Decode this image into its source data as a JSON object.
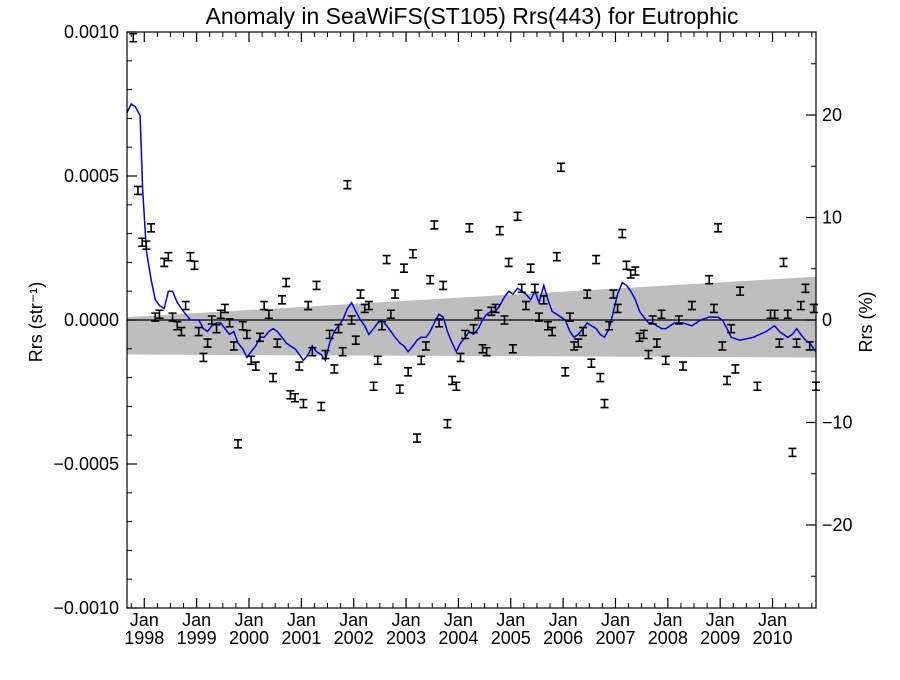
{
  "chart_data": {
    "type": "scatter",
    "title": "Anomaly in SeaWiFS(ST105) Rrs(443) for Eutrophic",
    "ylabel_left": "Rrs (str⁻¹)",
    "ylabel_right": "Rrs (%)",
    "xlabel": "",
    "xlim": [
      1997.67,
      2010.83
    ],
    "ylim_left": [
      -0.001,
      0.001
    ],
    "ylim_right": [
      -28.1,
      28.1
    ],
    "y_left_ticks": [
      "0.0010",
      "0.0005",
      "0.0000",
      "−0.0005",
      "−0.0010"
    ],
    "y_left_tick_values": [
      0.001,
      0.0005,
      0.0,
      -0.0005,
      -0.001
    ],
    "y_right_ticks": [
      "20",
      "10",
      "0",
      "−10",
      "−20"
    ],
    "y_right_tick_values": [
      20,
      10,
      0,
      -10,
      -20
    ],
    "x_ticks": [
      {
        "year": 1998,
        "top": "Jan",
        "bottom": "1998"
      },
      {
        "year": 1999,
        "top": "Jan",
        "bottom": "1999"
      },
      {
        "year": 2000,
        "top": "Jan",
        "bottom": "2000"
      },
      {
        "year": 2001,
        "top": "Jan",
        "bottom": "2001"
      },
      {
        "year": 2002,
        "top": "Jan",
        "bottom": "2002"
      },
      {
        "year": 2003,
        "top": "Jan",
        "bottom": "2003"
      },
      {
        "year": 2004,
        "top": "Jan",
        "bottom": "2004"
      },
      {
        "year": 2005,
        "top": "Jan",
        "bottom": "2005"
      },
      {
        "year": 2006,
        "top": "Jan",
        "bottom": "2006"
      },
      {
        "year": 2007,
        "top": "Jan",
        "bottom": "2007"
      },
      {
        "year": 2008,
        "top": "Jan",
        "bottom": "2008"
      },
      {
        "year": 2009,
        "top": "Jan",
        "bottom": "2009"
      },
      {
        "year": 2010,
        "top": "Jan",
        "bottom": "2010"
      }
    ],
    "grid": false,
    "colors": {
      "points": "#000000",
      "trend_line": "#0000dd",
      "confidence_band": "#bebebe",
      "zero_line": "#000000"
    },
    "confidence_band": {
      "x": [
        1997.67,
        2010.83
      ],
      "upper": [
        1e-05,
        0.00015
      ],
      "lower": [
        -0.00012,
        -0.00013
      ]
    },
    "zero_line": 0,
    "points": [
      {
        "x": 1997.79,
        "y": 0.00098
      },
      {
        "x": 1997.88,
        "y": 0.00045
      },
      {
        "x": 1997.96,
        "y": 0.00027
      },
      {
        "x": 1998.04,
        "y": 0.00026
      },
      {
        "x": 1998.13,
        "y": 0.00032
      },
      {
        "x": 1998.21,
        "y": 1e-05
      },
      {
        "x": 1998.29,
        "y": 2e-05
      },
      {
        "x": 1998.38,
        "y": 0.0002
      },
      {
        "x": 1998.46,
        "y": 0.00022
      },
      {
        "x": 1998.54,
        "y": 1e-05
      },
      {
        "x": 1998.63,
        "y": -2e-05
      },
      {
        "x": 1998.71,
        "y": -4e-05
      },
      {
        "x": 1998.79,
        "y": 5e-05
      },
      {
        "x": 1998.88,
        "y": 0.00022
      },
      {
        "x": 1998.96,
        "y": 0.00019
      },
      {
        "x": 1999.04,
        "y": -4e-05
      },
      {
        "x": 1999.13,
        "y": -0.00013
      },
      {
        "x": 1999.21,
        "y": -8e-05
      },
      {
        "x": 1999.29,
        "y": 0.0
      },
      {
        "x": 1999.38,
        "y": -3e-05
      },
      {
        "x": 1999.46,
        "y": 2e-05
      },
      {
        "x": 1999.54,
        "y": 4e-05
      },
      {
        "x": 1999.63,
        "y": -1e-05
      },
      {
        "x": 1999.71,
        "y": -9e-05
      },
      {
        "x": 1999.79,
        "y": -0.00043
      },
      {
        "x": 1999.88,
        "y": -2e-05
      },
      {
        "x": 1999.96,
        "y": -5e-05
      },
      {
        "x": 2000.04,
        "y": -0.00014
      },
      {
        "x": 2000.13,
        "y": -0.00016
      },
      {
        "x": 2000.21,
        "y": -6e-05
      },
      {
        "x": 2000.29,
        "y": 5e-05
      },
      {
        "x": 2000.38,
        "y": 2e-05
      },
      {
        "x": 2000.46,
        "y": -0.0002
      },
      {
        "x": 2000.54,
        "y": -8e-05
      },
      {
        "x": 2000.63,
        "y": 7e-05
      },
      {
        "x": 2000.71,
        "y": 0.00013
      },
      {
        "x": 2000.79,
        "y": -0.00026
      },
      {
        "x": 2000.88,
        "y": -0.00027
      },
      {
        "x": 2000.96,
        "y": -0.00016
      },
      {
        "x": 2001.04,
        "y": -0.00029
      },
      {
        "x": 2001.13,
        "y": 5e-05
      },
      {
        "x": 2001.21,
        "y": -0.00011
      },
      {
        "x": 2001.29,
        "y": 0.00012
      },
      {
        "x": 2001.38,
        "y": -0.0003
      },
      {
        "x": 2001.46,
        "y": -0.00012
      },
      {
        "x": 2001.54,
        "y": -5e-05
      },
      {
        "x": 2001.63,
        "y": -0.00017
      },
      {
        "x": 2001.71,
        "y": -3e-05
      },
      {
        "x": 2001.79,
        "y": -0.00011
      },
      {
        "x": 2001.88,
        "y": 0.00047
      },
      {
        "x": 2001.96,
        "y": 0.0
      },
      {
        "x": 2002.04,
        "y": -7e-05
      },
      {
        "x": 2002.13,
        "y": 9e-05
      },
      {
        "x": 2002.21,
        "y": 4e-05
      },
      {
        "x": 2002.29,
        "y": 5e-05
      },
      {
        "x": 2002.38,
        "y": -0.00023
      },
      {
        "x": 2002.46,
        "y": -0.00014
      },
      {
        "x": 2002.54,
        "y": -2e-05
      },
      {
        "x": 2002.63,
        "y": 0.00021
      },
      {
        "x": 2002.71,
        "y": 2e-05
      },
      {
        "x": 2002.79,
        "y": 9e-05
      },
      {
        "x": 2002.88,
        "y": -0.00024
      },
      {
        "x": 2002.96,
        "y": 0.00018
      },
      {
        "x": 2003.04,
        "y": -0.00018
      },
      {
        "x": 2003.13,
        "y": 0.00023
      },
      {
        "x": 2003.21,
        "y": -0.00041
      },
      {
        "x": 2003.29,
        "y": -0.00014
      },
      {
        "x": 2003.38,
        "y": -9e-05
      },
      {
        "x": 2003.46,
        "y": 0.00014
      },
      {
        "x": 2003.54,
        "y": 0.00033
      },
      {
        "x": 2003.63,
        "y": -1e-05
      },
      {
        "x": 2003.71,
        "y": 0.00012
      },
      {
        "x": 2003.79,
        "y": -0.00036
      },
      {
        "x": 2003.88,
        "y": -0.00021
      },
      {
        "x": 2003.96,
        "y": -0.00023
      },
      {
        "x": 2004.04,
        "y": -0.00013
      },
      {
        "x": 2004.13,
        "y": -5e-05
      },
      {
        "x": 2004.21,
        "y": 0.00032
      },
      {
        "x": 2004.29,
        "y": -3e-05
      },
      {
        "x": 2004.38,
        "y": 2e-05
      },
      {
        "x": 2004.46,
        "y": -0.0001
      },
      {
        "x": 2004.54,
        "y": -0.00011
      },
      {
        "x": 2004.63,
        "y": 3e-05
      },
      {
        "x": 2004.71,
        "y": 4e-05
      },
      {
        "x": 2004.79,
        "y": 0.00031
      },
      {
        "x": 2004.88,
        "y": 0.0
      },
      {
        "x": 2004.96,
        "y": 0.0002
      },
      {
        "x": 2005.04,
        "y": -0.0001
      },
      {
        "x": 2005.13,
        "y": 0.00036
      },
      {
        "x": 2005.21,
        "y": 0.00011
      },
      {
        "x": 2005.29,
        "y": 5e-05
      },
      {
        "x": 2005.38,
        "y": 0.00018
      },
      {
        "x": 2005.46,
        "y": 0.00011
      },
      {
        "x": 2005.54,
        "y": 1e-05
      },
      {
        "x": 2005.63,
        "y": 7e-05
      },
      {
        "x": 2005.71,
        "y": -2e-05
      },
      {
        "x": 2005.79,
        "y": -4e-05
      },
      {
        "x": 2005.88,
        "y": 0.00022
      },
      {
        "x": 2005.96,
        "y": 0.00053
      },
      {
        "x": 2006.04,
        "y": -0.00018
      },
      {
        "x": 2006.13,
        "y": 1e-05
      },
      {
        "x": 2006.21,
        "y": -9e-05
      },
      {
        "x": 2006.29,
        "y": -8e-05
      },
      {
        "x": 2006.38,
        "y": -4e-05
      },
      {
        "x": 2006.46,
        "y": 9e-05
      },
      {
        "x": 2006.54,
        "y": -0.00015
      },
      {
        "x": 2006.63,
        "y": 0.00021
      },
      {
        "x": 2006.71,
        "y": -0.0002
      },
      {
        "x": 2006.79,
        "y": -0.00029
      },
      {
        "x": 2006.88,
        "y": -2e-05
      },
      {
        "x": 2006.96,
        "y": 9e-05
      },
      {
        "x": 2007.04,
        "y": 4e-05
      },
      {
        "x": 2007.13,
        "y": 0.0003
      },
      {
        "x": 2007.21,
        "y": 0.00019
      },
      {
        "x": 2007.29,
        "y": 0.00016
      },
      {
        "x": 2007.38,
        "y": 0.00017
      },
      {
        "x": 2007.46,
        "y": -6e-05
      },
      {
        "x": 2007.54,
        "y": -5e-05
      },
      {
        "x": 2007.63,
        "y": -0.00012
      },
      {
        "x": 2007.71,
        "y": 0.0
      },
      {
        "x": 2007.79,
        "y": -8e-05
      },
      {
        "x": 2007.88,
        "y": 2e-05
      },
      {
        "x": 2007.96,
        "y": -0.00014
      },
      {
        "x": 2008.21,
        "y": 0.0
      },
      {
        "x": 2008.29,
        "y": -0.00016
      },
      {
        "x": 2008.46,
        "y": 5e-05
      },
      {
        "x": 2008.79,
        "y": 0.00014
      },
      {
        "x": 2008.88,
        "y": 4e-05
      },
      {
        "x": 2008.96,
        "y": 0.00032
      },
      {
        "x": 2009.04,
        "y": -9e-05
      },
      {
        "x": 2009.13,
        "y": -0.00021
      },
      {
        "x": 2009.21,
        "y": -3e-05
      },
      {
        "x": 2009.29,
        "y": -0.00017
      },
      {
        "x": 2009.38,
        "y": 0.0001
      },
      {
        "x": 2009.71,
        "y": -0.00023
      },
      {
        "x": 2009.96,
        "y": 2e-05
      },
      {
        "x": 2010.04,
        "y": 2e-05
      },
      {
        "x": 2010.13,
        "y": -8e-05
      },
      {
        "x": 2010.21,
        "y": 0.0002
      },
      {
        "x": 2010.29,
        "y": 2e-05
      },
      {
        "x": 2010.38,
        "y": -0.00046
      },
      {
        "x": 2010.46,
        "y": -8e-05
      },
      {
        "x": 2010.54,
        "y": 5e-05
      },
      {
        "x": 2010.63,
        "y": 0.00011
      },
      {
        "x": 2010.71,
        "y": -9e-05
      },
      {
        "x": 2010.79,
        "y": 4e-05
      },
      {
        "x": 2010.83,
        "y": -0.00023
      }
    ],
    "trend_line": [
      {
        "x": 1997.67,
        "y": 0.00072
      },
      {
        "x": 1997.75,
        "y": 0.00075
      },
      {
        "x": 1997.83,
        "y": 0.00074
      },
      {
        "x": 1997.92,
        "y": 0.00071
      },
      {
        "x": 1997.97,
        "y": 0.00045
      },
      {
        "x": 1998.04,
        "y": 0.00024
      },
      {
        "x": 1998.13,
        "y": 0.00014
      },
      {
        "x": 1998.21,
        "y": 7e-05
      },
      {
        "x": 1998.29,
        "y": 5e-05
      },
      {
        "x": 1998.38,
        "y": 4e-05
      },
      {
        "x": 1998.46,
        "y": 0.0001
      },
      {
        "x": 1998.54,
        "y": 0.0001
      },
      {
        "x": 1998.63,
        "y": 6e-05
      },
      {
        "x": 1998.71,
        "y": 4e-05
      },
      {
        "x": 1998.79,
        "y": 2e-05
      },
      {
        "x": 1998.88,
        "y": 0.0
      },
      {
        "x": 1998.96,
        "y": 0.0
      },
      {
        "x": 1999.04,
        "y": 0.0
      },
      {
        "x": 1999.13,
        "y": -3e-05
      },
      {
        "x": 1999.21,
        "y": -4e-05
      },
      {
        "x": 1999.29,
        "y": -2e-05
      },
      {
        "x": 1999.38,
        "y": -1e-05
      },
      {
        "x": 1999.46,
        "y": -1e-05
      },
      {
        "x": 1999.54,
        "y": -3e-05
      },
      {
        "x": 1999.63,
        "y": -5e-05
      },
      {
        "x": 1999.71,
        "y": -4e-05
      },
      {
        "x": 1999.79,
        "y": -8e-05
      },
      {
        "x": 1999.88,
        "y": -0.0001
      },
      {
        "x": 1999.96,
        "y": -0.00013
      },
      {
        "x": 2000.04,
        "y": -0.00011
      },
      {
        "x": 2000.13,
        "y": -9e-05
      },
      {
        "x": 2000.21,
        "y": -6e-05
      },
      {
        "x": 2000.29,
        "y": -6e-05
      },
      {
        "x": 2000.38,
        "y": -4e-05
      },
      {
        "x": 2000.46,
        "y": -3e-05
      },
      {
        "x": 2000.54,
        "y": -4e-05
      },
      {
        "x": 2000.63,
        "y": -6e-05
      },
      {
        "x": 2000.71,
        "y": -8e-05
      },
      {
        "x": 2000.79,
        "y": -9e-05
      },
      {
        "x": 2000.88,
        "y": -0.0001
      },
      {
        "x": 2000.96,
        "y": -0.00012
      },
      {
        "x": 2001.04,
        "y": -0.00014
      },
      {
        "x": 2001.13,
        "y": -0.00012
      },
      {
        "x": 2001.21,
        "y": -9e-05
      },
      {
        "x": 2001.29,
        "y": -0.00011
      },
      {
        "x": 2001.38,
        "y": -0.00012
      },
      {
        "x": 2001.46,
        "y": -0.00014
      },
      {
        "x": 2001.54,
        "y": -8e-05
      },
      {
        "x": 2001.63,
        "y": -4e-05
      },
      {
        "x": 2001.71,
        "y": -2e-05
      },
      {
        "x": 2001.79,
        "y": 0.0
      },
      {
        "x": 2001.88,
        "y": 4e-05
      },
      {
        "x": 2001.96,
        "y": 6e-05
      },
      {
        "x": 2002.04,
        "y": 3e-05
      },
      {
        "x": 2002.13,
        "y": 0.0
      },
      {
        "x": 2002.21,
        "y": -2e-05
      },
      {
        "x": 2002.29,
        "y": -5e-05
      },
      {
        "x": 2002.38,
        "y": -3e-05
      },
      {
        "x": 2002.46,
        "y": -1e-05
      },
      {
        "x": 2002.54,
        "y": 0.0
      },
      {
        "x": 2002.63,
        "y": -2e-05
      },
      {
        "x": 2002.71,
        "y": -4e-05
      },
      {
        "x": 2002.79,
        "y": -6e-05
      },
      {
        "x": 2002.88,
        "y": -8e-05
      },
      {
        "x": 2002.96,
        "y": -9e-05
      },
      {
        "x": 2003.04,
        "y": -0.00011
      },
      {
        "x": 2003.13,
        "y": -9e-05
      },
      {
        "x": 2003.21,
        "y": -7e-05
      },
      {
        "x": 2003.29,
        "y": -6e-05
      },
      {
        "x": 2003.38,
        "y": -6e-05
      },
      {
        "x": 2003.46,
        "y": -4e-05
      },
      {
        "x": 2003.54,
        "y": -1e-05
      },
      {
        "x": 2003.63,
        "y": 2e-05
      },
      {
        "x": 2003.71,
        "y": 1e-05
      },
      {
        "x": 2003.79,
        "y": -4e-05
      },
      {
        "x": 2003.88,
        "y": -8e-05
      },
      {
        "x": 2003.96,
        "y": -0.00011
      },
      {
        "x": 2004.04,
        "y": -8e-05
      },
      {
        "x": 2004.13,
        "y": -6e-05
      },
      {
        "x": 2004.21,
        "y": -4e-05
      },
      {
        "x": 2004.29,
        "y": -5e-05
      },
      {
        "x": 2004.38,
        "y": -3e-05
      },
      {
        "x": 2004.46,
        "y": 0.0
      },
      {
        "x": 2004.54,
        "y": 2e-05
      },
      {
        "x": 2004.63,
        "y": 3e-05
      },
      {
        "x": 2004.71,
        "y": 3e-05
      },
      {
        "x": 2004.79,
        "y": 5e-05
      },
      {
        "x": 2004.88,
        "y": 8e-05
      },
      {
        "x": 2004.96,
        "y": 0.0001
      },
      {
        "x": 2005.04,
        "y": 9e-05
      },
      {
        "x": 2005.13,
        "y": 0.00011
      },
      {
        "x": 2005.21,
        "y": 0.0001
      },
      {
        "x": 2005.29,
        "y": 9e-05
      },
      {
        "x": 2005.38,
        "y": 7e-05
      },
      {
        "x": 2005.46,
        "y": 0.0001
      },
      {
        "x": 2005.54,
        "y": 6e-05
      },
      {
        "x": 2005.63,
        "y": 0.00012
      },
      {
        "x": 2005.71,
        "y": 7e-05
      },
      {
        "x": 2005.79,
        "y": 3e-05
      },
      {
        "x": 2005.88,
        "y": 2e-05
      },
      {
        "x": 2005.96,
        "y": 1e-05
      },
      {
        "x": 2006.04,
        "y": 0.0
      },
      {
        "x": 2006.13,
        "y": -4e-05
      },
      {
        "x": 2006.21,
        "y": -6e-05
      },
      {
        "x": 2006.29,
        "y": -5e-05
      },
      {
        "x": 2006.38,
        "y": -3e-05
      },
      {
        "x": 2006.46,
        "y": -1e-05
      },
      {
        "x": 2006.54,
        "y": -2e-05
      },
      {
        "x": 2006.63,
        "y": -3e-05
      },
      {
        "x": 2006.71,
        "y": -5e-05
      },
      {
        "x": 2006.79,
        "y": -6e-05
      },
      {
        "x": 2006.88,
        "y": -3e-05
      },
      {
        "x": 2006.96,
        "y": 3e-05
      },
      {
        "x": 2007.04,
        "y": 9e-05
      },
      {
        "x": 2007.13,
        "y": 0.00013
      },
      {
        "x": 2007.21,
        "y": 0.00012
      },
      {
        "x": 2007.29,
        "y": 0.0001
      },
      {
        "x": 2007.38,
        "y": 7e-05
      },
      {
        "x": 2007.46,
        "y": 3e-05
      },
      {
        "x": 2007.54,
        "y": 1e-05
      },
      {
        "x": 2007.63,
        "y": -1e-05
      },
      {
        "x": 2007.71,
        "y": -1e-05
      },
      {
        "x": 2007.79,
        "y": -2e-05
      },
      {
        "x": 2007.88,
        "y": -3e-05
      },
      {
        "x": 2007.96,
        "y": -3e-05
      },
      {
        "x": 2008.13,
        "y": -1e-05
      },
      {
        "x": 2008.29,
        "y": -1e-05
      },
      {
        "x": 2008.46,
        "y": -2e-05
      },
      {
        "x": 2008.63,
        "y": 0.0
      },
      {
        "x": 2008.79,
        "y": 1e-05
      },
      {
        "x": 2008.96,
        "y": 1e-05
      },
      {
        "x": 2009.04,
        "y": 0.0
      },
      {
        "x": 2009.13,
        "y": -3e-05
      },
      {
        "x": 2009.21,
        "y": -6e-05
      },
      {
        "x": 2009.38,
        "y": -7e-05
      },
      {
        "x": 2009.63,
        "y": -6e-05
      },
      {
        "x": 2009.88,
        "y": -4e-05
      },
      {
        "x": 2010.04,
        "y": -2e-05
      },
      {
        "x": 2010.13,
        "y": -4e-05
      },
      {
        "x": 2010.21,
        "y": -5e-05
      },
      {
        "x": 2010.29,
        "y": -6e-05
      },
      {
        "x": 2010.38,
        "y": -5e-05
      },
      {
        "x": 2010.46,
        "y": -3e-05
      },
      {
        "x": 2010.54,
        "y": -5e-05
      },
      {
        "x": 2010.63,
        "y": -7e-05
      },
      {
        "x": 2010.71,
        "y": -8e-05
      },
      {
        "x": 2010.79,
        "y": -0.0001
      },
      {
        "x": 2010.83,
        "y": -0.00011
      }
    ]
  }
}
